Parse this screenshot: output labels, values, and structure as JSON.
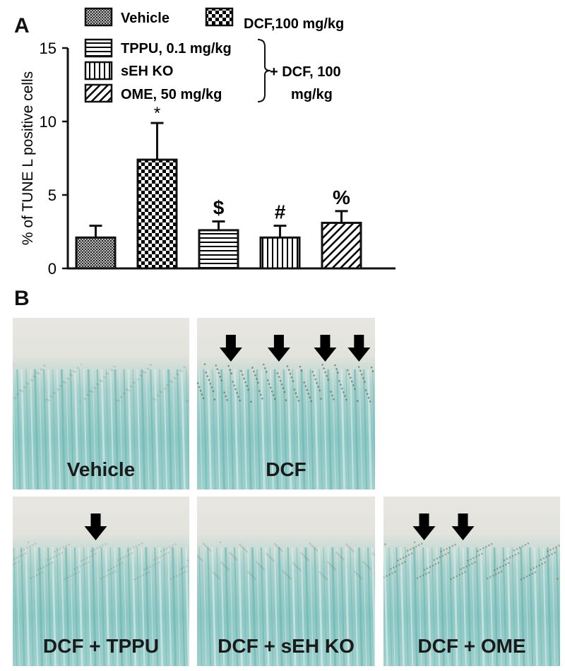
{
  "panel_a": {
    "letter": "A"
  },
  "panel_b": {
    "letter": "B"
  },
  "chart_data": {
    "type": "bar",
    "ylabel": "% of TUNE L  positive cells",
    "ylim": [
      0,
      15
    ],
    "yticks": [
      "0",
      "5",
      "10",
      "15"
    ],
    "categories": [
      "Vehicle",
      "DCF,100 mg/kg",
      "TPPU, 0.1 mg/kg",
      "sEH KO",
      "OME, 50 mg/kg"
    ],
    "values": [
      2.1,
      7.4,
      2.6,
      2.1,
      3.1
    ],
    "errors": [
      0.8,
      2.5,
      0.6,
      0.8,
      0.8
    ],
    "annotations": [
      "",
      "*",
      "$",
      "#",
      "%"
    ],
    "patterns": [
      "crosshatch",
      "checker",
      "hlines",
      "vlines",
      "diagonal"
    ],
    "legend": {
      "placement": "top",
      "group_label": "+ DCF, 100 mg/kg",
      "group_label_lines": [
        "+ DCF, 100",
        "mg/kg"
      ]
    },
    "grid": false,
    "colors": {
      "ink": "#111111",
      "fill": "#ffffff"
    }
  },
  "micrographs": [
    {
      "label": "Vehicle",
      "arrows": 0
    },
    {
      "label": "DCF",
      "arrows": 4
    },
    {
      "label": "DCF + TPPU",
      "arrows": 1
    },
    {
      "label": "DCF + sEH KO",
      "arrows": 0
    },
    {
      "label": "DCF + OME",
      "arrows": 2
    }
  ]
}
